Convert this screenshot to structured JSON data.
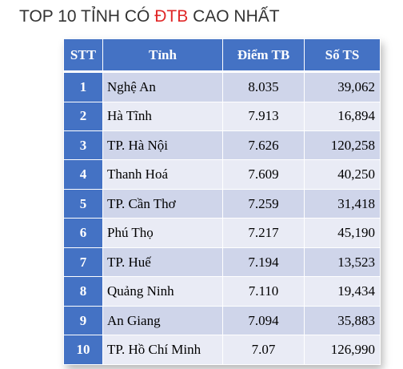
{
  "title": {
    "prefix": "TOP 10 TỈNH CÓ ",
    "highlight": "ĐTB",
    "suffix": " CAO NHẤT",
    "highlight_color": "#e02828"
  },
  "table": {
    "header_color": "#4472c4",
    "headers": {
      "stt": "STT",
      "province": "Tỉnh",
      "score": "Điểm TB",
      "count": "Số TS"
    },
    "rows": [
      {
        "stt": "1",
        "province": "Nghệ An",
        "score": "8.035",
        "count": "39,062"
      },
      {
        "stt": "2",
        "province": "Hà Tĩnh",
        "score": "7.913",
        "count": "16,894"
      },
      {
        "stt": "3",
        "province": "TP. Hà Nội",
        "score": "7.626",
        "count": "120,258"
      },
      {
        "stt": "4",
        "province": "Thanh Hoá",
        "score": "7.609",
        "count": "40,250"
      },
      {
        "stt": "5",
        "province": "TP. Cần Thơ",
        "score": "7.259",
        "count": "31,418"
      },
      {
        "stt": "6",
        "province": "Phú Thọ",
        "score": "7.217",
        "count": "45,190"
      },
      {
        "stt": "7",
        "province": "TP. Huế",
        "score": "7.194",
        "count": "13,523"
      },
      {
        "stt": "8",
        "province": "Quảng Ninh",
        "score": "7.110",
        "count": "19,434"
      },
      {
        "stt": "9",
        "province": "An Giang",
        "score": "7.094",
        "count": "35,883"
      },
      {
        "stt": "10",
        "province": "TP. Hồ Chí Minh",
        "score": "7.07",
        "count": "126,990"
      }
    ]
  }
}
